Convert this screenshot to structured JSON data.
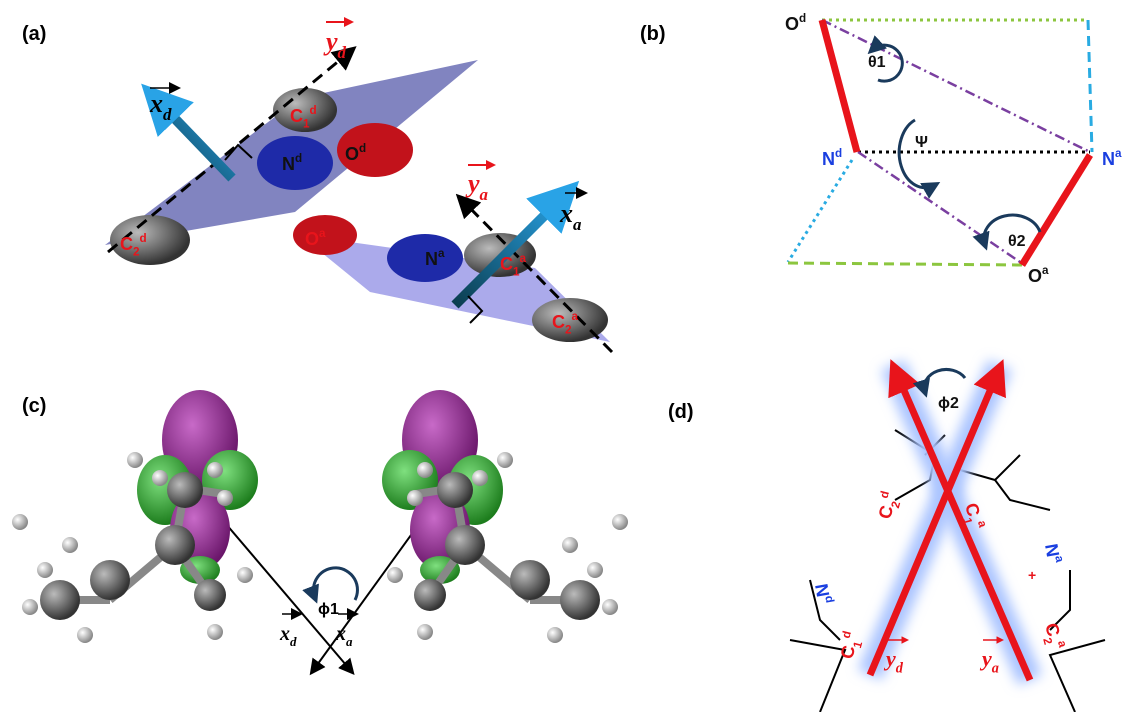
{
  "panel_a": {
    "label": "(a)",
    "atoms": [
      {
        "text": "C",
        "sub": "1",
        "sup": "d"
      },
      {
        "text": "N",
        "sup": "d"
      },
      {
        "text": "O",
        "sup": "d"
      },
      {
        "text": "C",
        "sub": "2",
        "sup": "d"
      },
      {
        "text": "O",
        "sup": "a"
      },
      {
        "text": "N",
        "sup": "a"
      },
      {
        "text": "C",
        "sub": "1",
        "sup": "a"
      },
      {
        "text": "C",
        "sub": "2",
        "sup": "a"
      }
    ],
    "vectors": [
      {
        "text": "y",
        "sub": "d"
      },
      {
        "text": "x",
        "sub": "d"
      },
      {
        "text": "y",
        "sub": "a"
      },
      {
        "text": "x",
        "sub": "a"
      }
    ]
  },
  "panel_b": {
    "label": "(b)",
    "atoms": [
      {
        "text": "O",
        "sup": "d"
      },
      {
        "text": "N",
        "sup": "d"
      },
      {
        "text": "N",
        "sup": "a"
      },
      {
        "text": "O",
        "sup": "a"
      }
    ],
    "angles": [
      "θ1",
      "Ψ",
      "θ2"
    ]
  },
  "panel_c": {
    "label": "(c)",
    "vectors": [
      {
        "text": "x",
        "sub": "d"
      },
      {
        "text": "x",
        "sub": "a"
      }
    ],
    "angle": "ϕ1"
  },
  "panel_d": {
    "label": "(d)",
    "atoms": [
      {
        "text": "C",
        "sub": "2",
        "sup": "d"
      },
      {
        "text": "C",
        "sub": "1",
        "sup": "a"
      },
      {
        "text": "N",
        "sup": "d"
      },
      {
        "text": "N",
        "sup": "a"
      },
      {
        "text": "C",
        "sub": "1",
        "sup": "d"
      },
      {
        "text": "C",
        "sub": "2",
        "sup": "a"
      }
    ],
    "charge": "+",
    "vectors": [
      {
        "text": "y",
        "sub": "d"
      },
      {
        "text": "y",
        "sub": "a"
      }
    ],
    "angle": "ϕ2"
  }
}
